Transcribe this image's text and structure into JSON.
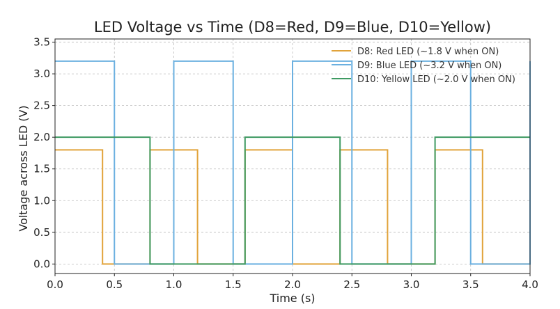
{
  "chart_data": {
    "type": "line",
    "step": "post",
    "title": "LED Voltage vs Time (D8=Red, D9=Blue, D10=Yellow)",
    "xlabel": "Time (s)",
    "ylabel": "Voltage across LED (V)",
    "xlim": [
      0,
      4.0
    ],
    "ylim": [
      -0.15,
      3.55
    ],
    "xticks": [
      0.0,
      0.5,
      1.0,
      1.5,
      2.0,
      2.5,
      3.0,
      3.5,
      4.0
    ],
    "xtick_labels": [
      "0.0",
      "0.5",
      "1.0",
      "1.5",
      "2.0",
      "2.5",
      "3.0",
      "3.5",
      "4.0"
    ],
    "yticks": [
      0.0,
      0.5,
      1.0,
      1.5,
      2.0,
      2.5,
      3.0,
      3.5
    ],
    "ytick_labels": [
      "0.0",
      "0.5",
      "1.0",
      "1.5",
      "2.0",
      "2.5",
      "3.0",
      "3.5"
    ],
    "grid": true,
    "legend_position": "top-right",
    "series": [
      {
        "name": "D8: Red LED (~1.8 V when ON)",
        "color": "#e1a33a",
        "x": [
          0.0,
          0.4,
          0.8,
          1.2,
          1.6,
          2.0,
          2.4,
          2.8,
          3.2,
          3.6,
          4.0
        ],
        "y": [
          1.8,
          0.0,
          1.8,
          0.0,
          1.8,
          0.0,
          1.8,
          0.0,
          1.8,
          0.0,
          0.0
        ]
      },
      {
        "name": "D9: Blue LED (~3.2 V when ON)",
        "color": "#6bb0e0",
        "x": [
          0.0,
          0.5,
          1.0,
          1.5,
          2.0,
          2.5,
          3.0,
          3.5,
          4.0
        ],
        "y": [
          3.2,
          0.0,
          3.2,
          0.0,
          3.2,
          0.0,
          3.2,
          0.0,
          3.2
        ]
      },
      {
        "name": "D10: Yellow LED (~2.0 V when ON)",
        "color": "#3e9a62",
        "x": [
          0.0,
          0.8,
          1.6,
          2.4,
          3.2,
          4.0
        ],
        "y": [
          2.0,
          0.0,
          2.0,
          0.0,
          2.0,
          2.0
        ]
      }
    ]
  }
}
